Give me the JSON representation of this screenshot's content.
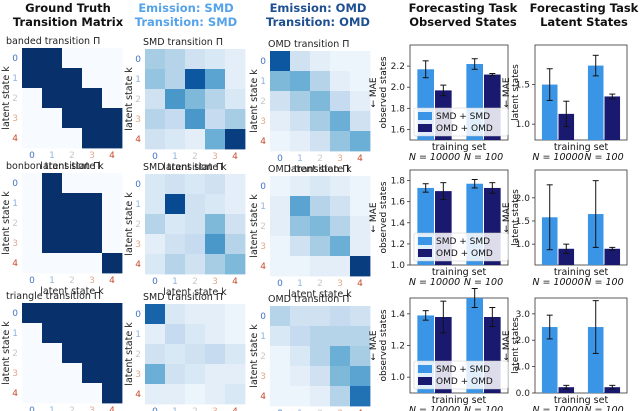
{
  "colors": {
    "smd": "#3b95e6",
    "omd": "#191970",
    "smd_header": "#55a3ea",
    "omd_header": "#1d4f91",
    "tick_k0": "#4472c4",
    "tick_k1": "#8fb3df",
    "tick_k2": "#c9c9c9",
    "tick_k3": "#e3a98d",
    "tick_k4": "#c7492b"
  },
  "headers": {
    "ground_truth": [
      "Ground Truth",
      "Transition Matrix"
    ],
    "smd": [
      "Emission: SMD",
      "Transition: SMD"
    ],
    "omd": [
      "Emission: OMD",
      "Transition: OMD"
    ],
    "observed": [
      "Forecasting Task",
      "Observed States"
    ],
    "latent": [
      "Forecasting Task",
      "Latent States"
    ]
  },
  "matrix_axis": {
    "xlabel": "latent state k",
    "ylabel": "latent state k",
    "ticks": [
      "0",
      "1",
      "2",
      "3",
      "4"
    ]
  },
  "rows": [
    {
      "name": "banded",
      "gt_title": "banded transition Π",
      "smd_title": "SMD transition Π",
      "omd_title": "OMD transition Π",
      "show_tick_labels": true
    },
    {
      "name": "bonbon",
      "gt_title": "bonbon transition Π",
      "smd_title": "SMD transition Π",
      "omd_title": "OMD transition Π",
      "show_tick_labels": true
    },
    {
      "name": "triangle",
      "gt_title": "triangle transition Π",
      "smd_title": "SMD transition Π",
      "omd_title": "OMD transition Π",
      "show_tick_labels": true
    }
  ],
  "chart_data": [
    {
      "type": "heatmap",
      "name": "banded-ground-truth",
      "title": "banded transition Π",
      "xlabel": "latent state k",
      "ylabel": "latent state k",
      "values": [
        [
          1,
          1,
          0,
          0,
          0
        ],
        [
          1,
          1,
          1,
          0,
          0
        ],
        [
          0,
          1,
          1,
          1,
          0
        ],
        [
          0,
          0,
          1,
          1,
          1
        ],
        [
          0,
          0,
          0,
          1,
          1
        ]
      ]
    },
    {
      "type": "heatmap",
      "name": "banded-smd",
      "title": "SMD transition Π",
      "xlabel": "latent state k",
      "ylabel": "latent state k",
      "values": [
        [
          0.35,
          0.3,
          0.2,
          0.15,
          0.1
        ],
        [
          0.4,
          0.3,
          0.85,
          0.55,
          0.1
        ],
        [
          0.2,
          0.6,
          0.45,
          0.3,
          0.15
        ],
        [
          0.3,
          0.25,
          0.6,
          0.25,
          0.35
        ],
        [
          0.2,
          0.15,
          0.1,
          0.5,
          0.95
        ]
      ]
    },
    {
      "type": "heatmap",
      "name": "banded-omd",
      "title": "OMD transition Π",
      "xlabel": "latent state k",
      "ylabel": "latent state k",
      "values": [
        [
          0.85,
          0.2,
          0.1,
          0.05,
          0.05
        ],
        [
          0.45,
          0.5,
          0.3,
          0.1,
          0.05
        ],
        [
          0.2,
          0.35,
          0.45,
          0.25,
          0.1
        ],
        [
          0.1,
          0.2,
          0.35,
          0.5,
          0.2
        ],
        [
          0.05,
          0.1,
          0.2,
          0.4,
          0.5
        ]
      ]
    },
    {
      "type": "heatmap",
      "name": "bonbon-ground-truth",
      "title": "bonbon transition Π",
      "xlabel": "latent state k",
      "ylabel": "latent state k",
      "values": [
        [
          0,
          1,
          0,
          0,
          0
        ],
        [
          0,
          1,
          1,
          1,
          0
        ],
        [
          0,
          1,
          1,
          1,
          0
        ],
        [
          0,
          1,
          1,
          1,
          0
        ],
        [
          0,
          0,
          0,
          0,
          1
        ]
      ]
    },
    {
      "type": "heatmap",
      "name": "bonbon-smd",
      "title": "SMD transition Π",
      "xlabel": "latent state k",
      "ylabel": "latent state k",
      "values": [
        [
          0.15,
          0.2,
          0.15,
          0.2,
          0.1
        ],
        [
          0.15,
          0.9,
          0.2,
          0.15,
          0.1
        ],
        [
          0.3,
          0.15,
          0.2,
          0.45,
          0.2
        ],
        [
          0.1,
          0.2,
          0.25,
          0.6,
          0.3
        ],
        [
          0.15,
          0.3,
          0.2,
          0.35,
          0.45
        ]
      ]
    },
    {
      "type": "heatmap",
      "name": "bonbon-omd",
      "title": "OMD transition Π",
      "xlabel": "latent state k",
      "ylabel": "latent state k",
      "values": [
        [
          0.05,
          0.1,
          0.15,
          0.1,
          0.05
        ],
        [
          0.1,
          0.55,
          0.3,
          0.2,
          0.05
        ],
        [
          0.1,
          0.4,
          0.45,
          0.3,
          0.1
        ],
        [
          0.05,
          0.2,
          0.35,
          0.5,
          0.1
        ],
        [
          0.05,
          0.05,
          0.1,
          0.1,
          0.95
        ]
      ]
    },
    {
      "type": "heatmap",
      "name": "triangle-ground-truth",
      "title": "triangle transition Π",
      "xlabel": "latent state k",
      "ylabel": "latent state k",
      "values": [
        [
          1,
          1,
          1,
          1,
          1
        ],
        [
          0,
          1,
          1,
          1,
          1
        ],
        [
          0,
          0,
          1,
          1,
          1
        ],
        [
          0,
          0,
          0,
          1,
          1
        ],
        [
          0,
          0,
          0,
          0,
          1
        ]
      ]
    },
    {
      "type": "heatmap",
      "name": "triangle-smd",
      "title": "SMD transition Π",
      "xlabel": "latent state k",
      "ylabel": "latent state k",
      "values": [
        [
          0.8,
          0.15,
          0.1,
          0.1,
          0.05
        ],
        [
          0.1,
          0.25,
          0.15,
          0.1,
          0.05
        ],
        [
          0.2,
          0.15,
          0.2,
          0.25,
          0.15
        ],
        [
          0.5,
          0.2,
          0.15,
          0.1,
          0.1
        ],
        [
          0.1,
          0.1,
          0.05,
          0.1,
          0.15
        ]
      ]
    },
    {
      "type": "heatmap",
      "name": "triangle-omd",
      "title": "OMD transition Π",
      "xlabel": "latent state k",
      "ylabel": "latent state k",
      "values": [
        [
          0.3,
          0.2,
          0.2,
          0.25,
          0.2
        ],
        [
          0.15,
          0.25,
          0.3,
          0.3,
          0.3
        ],
        [
          0.05,
          0.15,
          0.3,
          0.5,
          0.35
        ],
        [
          0.05,
          0.1,
          0.2,
          0.45,
          0.55
        ],
        [
          0.05,
          0.05,
          0.1,
          0.3,
          0.75
        ]
      ]
    },
    {
      "type": "bar",
      "name": "banded-observed",
      "ylabel": "← MAE observed states",
      "xlabel": "training set",
      "categories": [
        "N = 10000",
        "N = 100"
      ],
      "ylim": [
        1.5,
        2.4
      ],
      "yticks": [
        "1.6",
        "1.8",
        "2.0",
        "2.2"
      ],
      "ytick_values": [
        1.6,
        1.8,
        2.0,
        2.2
      ],
      "legend": [
        "SMD + SMD",
        "OMD + OMD"
      ],
      "series": [
        {
          "name": "SMD + SMD",
          "values": [
            2.17,
            2.22
          ],
          "err": [
            0.08,
            0.05
          ]
        },
        {
          "name": "OMD + OMD",
          "values": [
            1.97,
            2.12
          ],
          "err": [
            0.05,
            0.01
          ]
        }
      ]
    },
    {
      "type": "bar",
      "name": "banded-latent",
      "ylabel": "← MAE latent states",
      "xlabel": "training set",
      "categories": [
        "N = 10000",
        "N = 100"
      ],
      "ylim": [
        0.8,
        2.0
      ],
      "yticks": [
        "1.0",
        "1.5"
      ],
      "ytick_values": [
        1.0,
        1.5
      ],
      "series": [
        {
          "name": "SMD + SMD",
          "values": [
            1.5,
            1.74
          ],
          "err": [
            0.2,
            0.13
          ]
        },
        {
          "name": "OMD + OMD",
          "values": [
            1.13,
            1.35
          ],
          "err": [
            0.16,
            0.03
          ]
        }
      ]
    },
    {
      "type": "bar",
      "name": "bonbon-observed",
      "ylabel": "← MAE observed states",
      "xlabel": "training set",
      "categories": [
        "N = 10000",
        "N = 100"
      ],
      "ylim": [
        1.0,
        1.9
      ],
      "yticks": [
        "1.0",
        "1.2",
        "1.4",
        "1.6",
        "1.8"
      ],
      "ytick_values": [
        1.0,
        1.2,
        1.4,
        1.6,
        1.8
      ],
      "legend": [
        "SMD + SMD",
        "OMD + OMD"
      ],
      "series": [
        {
          "name": "SMD + SMD",
          "values": [
            1.73,
            1.77
          ],
          "err": [
            0.04,
            0.04
          ]
        },
        {
          "name": "OMD + OMD",
          "values": [
            1.7,
            1.73
          ],
          "err": [
            0.08,
            0.05
          ]
        }
      ]
    },
    {
      "type": "bar",
      "name": "bonbon-latent",
      "ylabel": "← MAE latent states",
      "xlabel": "training set",
      "categories": [
        "N = 10000",
        "N = 100"
      ],
      "ylim": [
        0.55,
        2.6
      ],
      "yticks": [
        "1.0",
        "1.5",
        "2.0"
      ],
      "ytick_values": [
        1.0,
        1.5,
        2.0
      ],
      "series": [
        {
          "name": "SMD + SMD",
          "values": [
            1.58,
            1.65
          ],
          "err": [
            0.7,
            0.72
          ]
        },
        {
          "name": "OMD + OMD",
          "values": [
            0.9,
            0.9
          ],
          "err": [
            0.1,
            0.03
          ]
        }
      ]
    },
    {
      "type": "bar",
      "name": "triangle-observed",
      "ylabel": "← MAE observed states",
      "xlabel": "training set",
      "categories": [
        "N = 10000",
        "N = 100"
      ],
      "ylim": [
        0.9,
        1.5
      ],
      "yticks": [
        "1.0",
        "1.2",
        "1.4"
      ],
      "ytick_values": [
        1.0,
        1.2,
        1.4
      ],
      "legend": [
        "SMD + SMD",
        "OMD + OMD"
      ],
      "series": [
        {
          "name": "SMD + SMD",
          "values": [
            1.39,
            1.5
          ],
          "err": [
            0.03,
            0.06
          ]
        },
        {
          "name": "OMD + OMD",
          "values": [
            1.38,
            1.38
          ],
          "err": [
            0.1,
            0.06
          ]
        }
      ]
    },
    {
      "type": "bar",
      "name": "triangle-latent",
      "ylabel": "← MAE latent states",
      "xlabel": "training set",
      "categories": [
        "N = 10000",
        "N = 100"
      ],
      "ylim": [
        0,
        3.6
      ],
      "yticks": [
        "0.0",
        "1.0",
        "2.0",
        "3.0"
      ],
      "ytick_values": [
        0.0,
        1.0,
        2.0,
        3.0
      ],
      "series": [
        {
          "name": "SMD + SMD",
          "values": [
            2.5,
            2.5
          ],
          "err": [
            0.45,
            1.0
          ]
        },
        {
          "name": "OMD + OMD",
          "values": [
            0.22,
            0.22
          ],
          "err": [
            0.07,
            0.07
          ]
        }
      ]
    }
  ]
}
